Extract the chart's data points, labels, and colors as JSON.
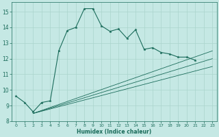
{
  "xlabel": "Humidex (Indice chaleur)",
  "xlim": [
    -0.5,
    23.5
  ],
  "ylim": [
    8.0,
    15.6
  ],
  "xticks": [
    0,
    1,
    2,
    3,
    4,
    5,
    6,
    7,
    8,
    9,
    10,
    11,
    12,
    13,
    14,
    15,
    16,
    17,
    18,
    19,
    20,
    21,
    22,
    23
  ],
  "yticks": [
    8,
    9,
    10,
    11,
    12,
    13,
    14,
    15
  ],
  "bg_color": "#c5e8e4",
  "grid_color": "#aad4cc",
  "line_color": "#1a6b5a",
  "main_line": {
    "x": [
      0,
      1,
      2,
      3,
      4,
      5,
      6,
      7,
      8,
      9,
      10,
      11,
      12,
      13,
      14,
      15,
      16,
      17,
      18,
      19,
      20,
      21
    ],
    "y": [
      9.6,
      9.2,
      8.6,
      9.2,
      9.3,
      12.5,
      13.8,
      14.0,
      15.2,
      15.2,
      14.1,
      13.75,
      13.9,
      13.3,
      13.85,
      12.6,
      12.7,
      12.4,
      12.3,
      12.1,
      12.1,
      11.9
    ]
  },
  "straight_lines": [
    {
      "x": [
        2,
        23
      ],
      "y": [
        8.5,
        11.5
      ]
    },
    {
      "x": [
        2,
        23
      ],
      "y": [
        8.5,
        12.0
      ]
    },
    {
      "x": [
        2,
        23
      ],
      "y": [
        8.5,
        12.5
      ]
    }
  ]
}
